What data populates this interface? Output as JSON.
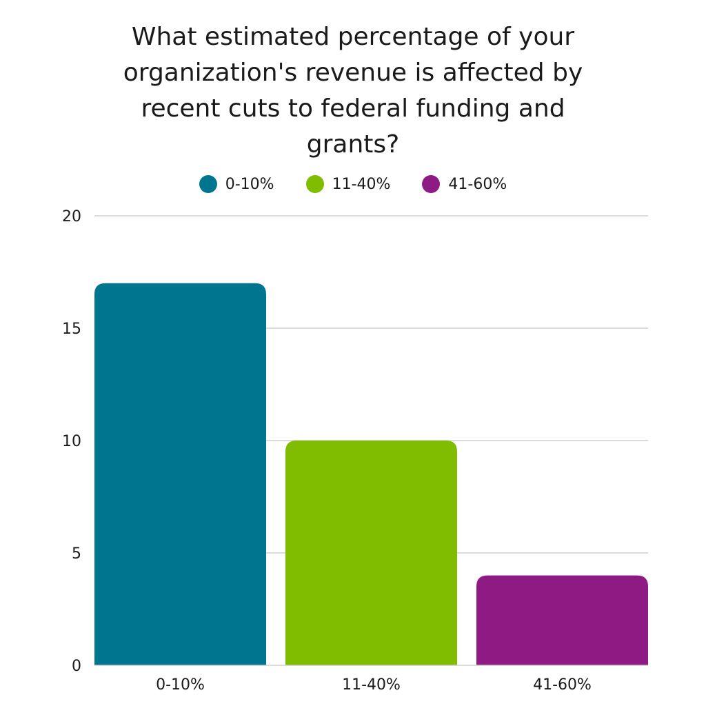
{
  "chart_data": {
    "type": "bar",
    "title": "What estimated percentage of your organization's revenue is affected by recent cuts to federal funding and grants?",
    "categories": [
      "0-10%",
      "11-40%",
      "41-60%"
    ],
    "values": [
      17,
      10,
      4
    ],
    "colors": [
      "#00758f",
      "#80bc00",
      "#8e1b84"
    ],
    "legend": {
      "position": "top",
      "entries": [
        "0-10%",
        "11-40%",
        "41-60%"
      ]
    },
    "y_ticks": [
      "0",
      "5",
      "10",
      "15",
      "20"
    ],
    "ylim": [
      0,
      20
    ],
    "grid": true,
    "xlabel": "",
    "ylabel": ""
  }
}
